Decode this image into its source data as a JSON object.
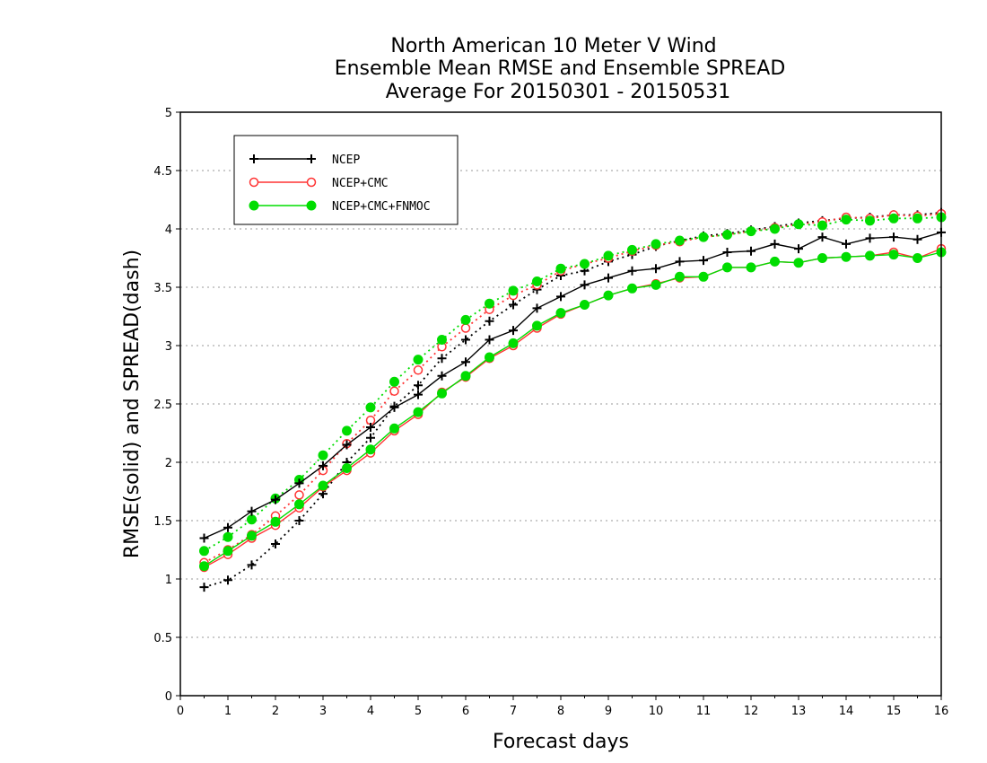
{
  "chart_data": {
    "type": "line",
    "title": [
      "North American 10 Meter V Wind",
      "Ensemble Mean RMSE and Ensemble SPREAD",
      "Average For 20150301 - 20150531"
    ],
    "xlabel": "Forecast days",
    "ylabel": "RMSE(solid) and SPREAD(dash)",
    "xlim": [
      0,
      16
    ],
    "ylim": [
      0,
      5
    ],
    "xticks": [
      "0",
      "1",
      "2",
      "3",
      "4",
      "5",
      "6",
      "7",
      "8",
      "9",
      "10",
      "11",
      "12",
      "13",
      "14",
      "15",
      "16"
    ],
    "yticks": [
      "0",
      "0.5",
      "1",
      "1.5",
      "2",
      "2.5",
      "3",
      "3.5",
      "4",
      "4.5",
      "5"
    ],
    "grid": true,
    "legend_position": "top-left",
    "x": [
      0.5,
      1,
      1.5,
      2,
      2.5,
      3,
      3.5,
      4,
      4.5,
      5,
      5.5,
      6,
      6.5,
      7,
      7.5,
      8,
      8.5,
      9,
      9.5,
      10,
      10.5,
      11,
      11.5,
      12,
      12.5,
      13,
      13.5,
      14,
      14.5,
      15,
      15.5,
      16
    ],
    "series": [
      {
        "name": "NCEP",
        "marker": "plus",
        "color": "#000000",
        "style": "solid",
        "values": [
          1.35,
          1.44,
          1.58,
          1.68,
          1.82,
          1.97,
          2.15,
          2.3,
          2.47,
          2.58,
          2.74,
          2.86,
          3.05,
          3.13,
          3.32,
          3.42,
          3.52,
          3.58,
          3.64,
          3.66,
          3.72,
          3.73,
          3.8,
          3.81,
          3.87,
          3.83,
          3.93,
          3.87,
          3.92,
          3.93,
          3.91,
          3.97
        ]
      },
      {
        "name": "NCEP",
        "marker": "plus",
        "color": "#000000",
        "style": "dash",
        "values": [
          0.93,
          0.99,
          1.12,
          1.3,
          1.5,
          1.73,
          2.0,
          2.21,
          2.48,
          2.66,
          2.89,
          3.05,
          3.21,
          3.35,
          3.48,
          3.6,
          3.64,
          3.72,
          3.78,
          3.85,
          3.9,
          3.94,
          3.96,
          3.99,
          4.02,
          4.05,
          4.07,
          4.09,
          4.1,
          4.12,
          4.12,
          4.14
        ]
      },
      {
        "name": "NCEP+CMC",
        "marker": "circle-open",
        "color": "#ff3333",
        "style": "solid",
        "values": [
          1.1,
          1.21,
          1.35,
          1.46,
          1.61,
          1.79,
          1.93,
          2.08,
          2.27,
          2.41,
          2.6,
          2.73,
          2.89,
          3.0,
          3.15,
          3.27,
          3.35,
          3.43,
          3.49,
          3.53,
          3.58,
          3.59,
          3.67,
          3.67,
          3.72,
          3.71,
          3.75,
          3.76,
          3.77,
          3.8,
          3.75,
          3.83
        ]
      },
      {
        "name": "NCEP+CMC",
        "marker": "circle-open",
        "color": "#ff3333",
        "style": "dash",
        "values": [
          1.14,
          1.25,
          1.38,
          1.54,
          1.72,
          1.93,
          2.16,
          2.36,
          2.61,
          2.79,
          2.99,
          3.15,
          3.31,
          3.43,
          3.52,
          3.64,
          3.7,
          3.75,
          3.81,
          3.86,
          3.89,
          3.93,
          3.95,
          3.98,
          4.01,
          4.04,
          4.06,
          4.1,
          4.09,
          4.12,
          4.11,
          4.13
        ]
      },
      {
        "name": "NCEP+CMC+FNMOC",
        "marker": "circle-filled",
        "color": "#00dd00",
        "style": "solid",
        "values": [
          1.11,
          1.24,
          1.37,
          1.49,
          1.64,
          1.8,
          1.95,
          2.11,
          2.29,
          2.43,
          2.59,
          2.74,
          2.9,
          3.02,
          3.17,
          3.28,
          3.35,
          3.43,
          3.49,
          3.52,
          3.59,
          3.59,
          3.67,
          3.67,
          3.72,
          3.71,
          3.75,
          3.76,
          3.77,
          3.78,
          3.75,
          3.8
        ]
      },
      {
        "name": "NCEP+CMC+FNMOC",
        "marker": "circle-filled",
        "color": "#00dd00",
        "style": "dash",
        "values": [
          1.24,
          1.36,
          1.51,
          1.69,
          1.85,
          2.06,
          2.27,
          2.47,
          2.69,
          2.88,
          3.05,
          3.22,
          3.36,
          3.47,
          3.55,
          3.66,
          3.7,
          3.77,
          3.82,
          3.87,
          3.9,
          3.93,
          3.95,
          3.98,
          4.0,
          4.04,
          4.03,
          4.08,
          4.07,
          4.09,
          4.09,
          4.1
        ]
      }
    ]
  }
}
